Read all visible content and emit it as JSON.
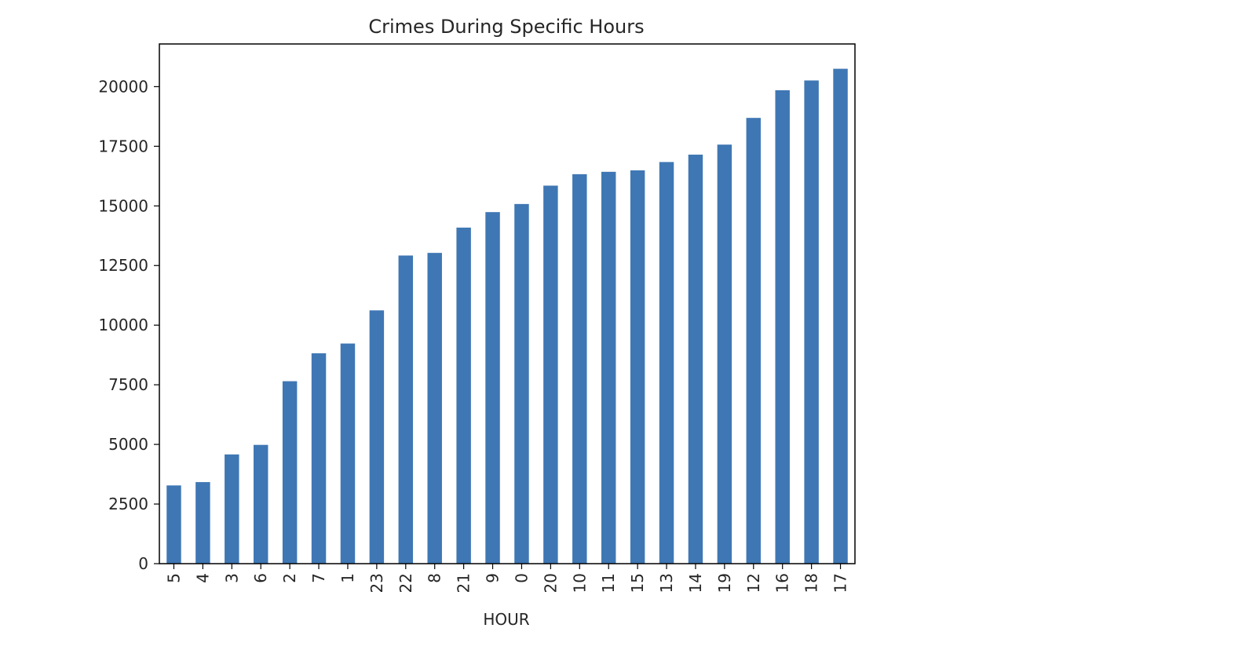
{
  "chart_data": {
    "type": "bar",
    "title": "Crimes During Specific Hours",
    "xlabel": "HOUR",
    "ylabel": "",
    "categories": [
      "5",
      "4",
      "3",
      "6",
      "2",
      "7",
      "1",
      "23",
      "22",
      "8",
      "21",
      "9",
      "0",
      "20",
      "10",
      "11",
      "15",
      "13",
      "14",
      "19",
      "12",
      "16",
      "18",
      "17"
    ],
    "values": [
      3280,
      3420,
      4580,
      4980,
      7650,
      8820,
      9230,
      10620,
      12920,
      13030,
      14090,
      14740,
      15080,
      15850,
      16330,
      16430,
      16490,
      16840,
      17150,
      17570,
      18690,
      19850,
      20260,
      20750
    ],
    "yticks": [
      0,
      2500,
      5000,
      7500,
      10000,
      12500,
      15000,
      17500,
      20000
    ],
    "ylim": [
      0,
      21790
    ],
    "grid": false,
    "legend": false,
    "bar_color": "#3f77b4",
    "frame_color": "#000000"
  }
}
